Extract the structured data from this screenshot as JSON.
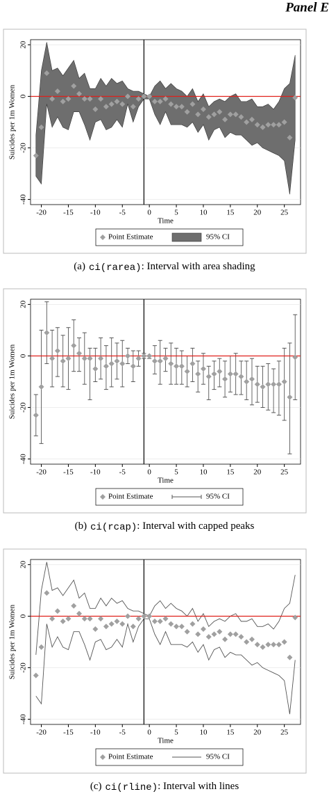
{
  "header": "Panel E",
  "chart_data": [
    {
      "type": "area",
      "xlabel": "Time",
      "ylabel": "Suicides per 1m Women",
      "caption": {
        "label": "(a)",
        "code": "ci(rarea)",
        "text": ": Interval with area shading"
      },
      "x": [
        -21,
        -20,
        -19,
        -18,
        -17,
        -16,
        -15,
        -14,
        -13,
        -12,
        -11,
        -10,
        -9,
        -8,
        -7,
        -6,
        -5,
        -4,
        -3,
        -2,
        -1,
        0,
        1,
        2,
        3,
        4,
        5,
        6,
        7,
        8,
        9,
        10,
        11,
        12,
        13,
        14,
        15,
        16,
        17,
        18,
        19,
        20,
        21,
        22,
        23,
        24,
        25,
        26,
        27
      ],
      "series": [
        {
          "name": "Point Estimate",
          "color": "#a0a0a0",
          "values": [
            -23,
            -12,
            9,
            -1,
            2,
            -2,
            -1,
            4,
            1,
            -1,
            -1,
            -5,
            -1,
            -4,
            -3,
            -2,
            -3,
            0,
            -4,
            -1,
            0,
            0,
            -2,
            -2,
            -1,
            -3,
            -4,
            -4,
            -6,
            -3,
            -7,
            -5,
            -8,
            -7,
            -6,
            -9,
            -7,
            -7,
            -8,
            -10,
            -9,
            -11,
            -12,
            -11,
            -11,
            -11,
            -10,
            -16,
            -0.5
          ]
        },
        {
          "name": "95% CI",
          "color": "#6e6e6e",
          "lower": [
            -31,
            -34,
            -3,
            -12,
            -8,
            -12,
            -13,
            -6,
            -6,
            -11,
            -17,
            -10,
            -9,
            -13,
            -12,
            -9,
            -12,
            -3,
            -10,
            -4,
            -1,
            -1,
            -7,
            -11,
            -6,
            -11,
            -11,
            -11,
            -12,
            -10,
            -14,
            -11,
            -17,
            -13,
            -12,
            -16,
            -14,
            -15,
            -15,
            -17,
            -19,
            -18,
            -20,
            -21,
            -22,
            -23,
            -25,
            -38,
            -17
          ],
          "upper": [
            -15,
            10,
            21,
            10,
            11,
            8,
            11,
            14,
            7,
            9,
            3,
            3,
            7,
            4,
            7,
            5,
            6,
            3,
            2,
            2,
            1,
            0,
            4,
            6,
            3,
            5,
            3,
            2,
            0,
            3,
            -2,
            1,
            -4,
            -2,
            -1,
            -2,
            0,
            1,
            -2,
            -2,
            -1,
            -4,
            -4,
            -3,
            -5,
            -2,
            3,
            5,
            16
          ]
        }
      ],
      "xlim": [
        -22,
        28
      ],
      "xticks": [
        -20,
        -15,
        -10,
        -5,
        0,
        5,
        10,
        15,
        20,
        25
      ],
      "ylim": [
        -42,
        22
      ],
      "yticks": [
        -40,
        -20,
        0,
        20
      ],
      "hline": 0,
      "vline": -1
    },
    {
      "type": "errorbar",
      "xlabel": "Time",
      "ylabel": "Suicides per 1m Women",
      "caption": {
        "label": "(b)",
        "code": "ci(rcap)",
        "text": ": Interval with capped peaks"
      },
      "x": [
        -21,
        -20,
        -19,
        -18,
        -17,
        -16,
        -15,
        -14,
        -13,
        -12,
        -11,
        -10,
        -9,
        -8,
        -7,
        -6,
        -5,
        -4,
        -3,
        -2,
        -1,
        0,
        1,
        2,
        3,
        4,
        5,
        6,
        7,
        8,
        9,
        10,
        11,
        12,
        13,
        14,
        15,
        16,
        17,
        18,
        19,
        20,
        21,
        22,
        23,
        24,
        25,
        26,
        27
      ],
      "series": [
        {
          "name": "Point Estimate",
          "color": "#a0a0a0",
          "values": [
            -23,
            -12,
            9,
            -1,
            2,
            -2,
            -1,
            4,
            1,
            -1,
            -1,
            -5,
            -1,
            -4,
            -3,
            -2,
            -3,
            0,
            -4,
            -1,
            0,
            0,
            -2,
            -2,
            -1,
            -3,
            -4,
            -4,
            -6,
            -3,
            -7,
            -5,
            -8,
            -7,
            -6,
            -9,
            -7,
            -7,
            -8,
            -10,
            -9,
            -11,
            -12,
            -11,
            -11,
            -11,
            -10,
            -16,
            -0.5
          ]
        },
        {
          "name": "95% CI",
          "color": "#555555",
          "lower": [
            -31,
            -34,
            -3,
            -12,
            -8,
            -12,
            -13,
            -6,
            -6,
            -11,
            -17,
            -10,
            -9,
            -13,
            -12,
            -9,
            -12,
            -3,
            -10,
            -4,
            -1,
            -1,
            -7,
            -11,
            -6,
            -11,
            -11,
            -11,
            -12,
            -10,
            -14,
            -11,
            -17,
            -13,
            -12,
            -16,
            -14,
            -15,
            -15,
            -17,
            -19,
            -18,
            -20,
            -21,
            -22,
            -23,
            -25,
            -38,
            -17
          ],
          "upper": [
            -15,
            10,
            21,
            10,
            11,
            8,
            11,
            14,
            7,
            9,
            3,
            3,
            7,
            4,
            7,
            5,
            6,
            3,
            2,
            2,
            1,
            0,
            4,
            6,
            3,
            5,
            3,
            2,
            0,
            3,
            -2,
            1,
            -4,
            -2,
            -1,
            -2,
            0,
            1,
            -2,
            -2,
            -1,
            -4,
            -4,
            -3,
            -5,
            -2,
            3,
            5,
            16
          ]
        }
      ],
      "xlim": [
        -22,
        28
      ],
      "xticks": [
        -20,
        -15,
        -10,
        -5,
        0,
        5,
        10,
        15,
        20,
        25
      ],
      "ylim": [
        -42,
        22
      ],
      "yticks": [
        -40,
        -20,
        0,
        20
      ],
      "hline": 0,
      "vline": -1
    },
    {
      "type": "line",
      "xlabel": "Time",
      "ylabel": "Suicides per 1m Women",
      "caption": {
        "label": "(c)",
        "code": "ci(rline)",
        "text": ": Interval with lines"
      },
      "x": [
        -21,
        -20,
        -19,
        -18,
        -17,
        -16,
        -15,
        -14,
        -13,
        -12,
        -11,
        -10,
        -9,
        -8,
        -7,
        -6,
        -5,
        -4,
        -3,
        -2,
        -1,
        0,
        1,
        2,
        3,
        4,
        5,
        6,
        7,
        8,
        9,
        10,
        11,
        12,
        13,
        14,
        15,
        16,
        17,
        18,
        19,
        20,
        21,
        22,
        23,
        24,
        25,
        26,
        27
      ],
      "series": [
        {
          "name": "Point Estimate",
          "color": "#a0a0a0",
          "values": [
            -23,
            -12,
            9,
            -1,
            2,
            -2,
            -1,
            4,
            1,
            -1,
            -1,
            -5,
            -1,
            -4,
            -3,
            -2,
            -3,
            0,
            -4,
            -1,
            0,
            0,
            -2,
            -2,
            -1,
            -3,
            -4,
            -4,
            -6,
            -3,
            -7,
            -5,
            -8,
            -7,
            -6,
            -9,
            -7,
            -7,
            -8,
            -10,
            -9,
            -11,
            -12,
            -11,
            -11,
            -11,
            -10,
            -16,
            -0.5
          ]
        },
        {
          "name": "95% CI",
          "color": "#555555",
          "lower": [
            -31,
            -34,
            -3,
            -12,
            -8,
            -12,
            -13,
            -6,
            -6,
            -11,
            -17,
            -10,
            -9,
            -13,
            -12,
            -9,
            -12,
            -3,
            -10,
            -4,
            -1,
            -1,
            -7,
            -11,
            -6,
            -11,
            -11,
            -11,
            -12,
            -10,
            -14,
            -11,
            -17,
            -13,
            -12,
            -16,
            -14,
            -15,
            -15,
            -17,
            -19,
            -18,
            -20,
            -21,
            -22,
            -23,
            -25,
            -38,
            -17
          ],
          "upper": [
            -15,
            10,
            21,
            10,
            11,
            8,
            11,
            14,
            7,
            9,
            3,
            3,
            7,
            4,
            7,
            5,
            6,
            3,
            2,
            2,
            1,
            0,
            4,
            6,
            3,
            5,
            3,
            2,
            0,
            3,
            -2,
            1,
            -4,
            -2,
            -1,
            -2,
            0,
            1,
            -2,
            -2,
            -1,
            -4,
            -4,
            -3,
            -5,
            -2,
            3,
            5,
            16
          ]
        }
      ],
      "xlim": [
        -22,
        28
      ],
      "xticks": [
        -20,
        -15,
        -10,
        -5,
        0,
        5,
        10,
        15,
        20,
        25
      ],
      "ylim": [
        -42,
        22
      ],
      "yticks": [
        -40,
        -20,
        0,
        20
      ],
      "hline": 0,
      "vline": -1
    }
  ]
}
